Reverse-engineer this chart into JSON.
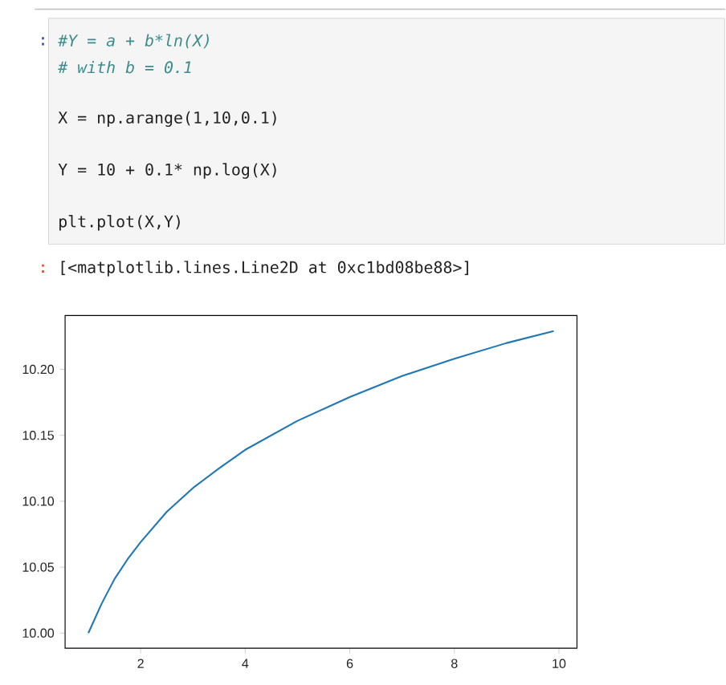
{
  "chart_data": {
    "type": "line",
    "annotations": [
      ":",
      "#Y = a + b*ln(X)",
      "# with b = 0.1",
      "X = np.arange(1,10,0.1)",
      "Y = 10 + 0.1* np.log(X)",
      "plt.plot(X,Y)",
      ":",
      "[<matplotlib.lines.Line2D at 0xc1bd08be88>]"
    ],
    "x": [
      1,
      1.25,
      1.5,
      1.75,
      2,
      2.5,
      3,
      3.5,
      4,
      5,
      6,
      7,
      8,
      9,
      9.9
    ],
    "series": [
      {
        "color": "#1f77b4",
        "values": [
          10.0,
          10.022,
          10.041,
          10.056,
          10.069,
          10.092,
          10.11,
          10.125,
          10.139,
          10.161,
          10.179,
          10.195,
          10.208,
          10.22,
          10.229
        ]
      }
    ],
    "xlim": [
      0.555,
      10.345
    ],
    "ylim": [
      9.9885,
      10.2408
    ],
    "xticks": [
      2,
      4,
      6,
      8,
      10
    ],
    "yticks": [
      {
        "value": 10.0,
        "label": "10.00"
      },
      {
        "value": 10.05,
        "label": "10.05"
      },
      {
        "value": 10.1,
        "label": "10.10"
      },
      {
        "value": 10.15,
        "label": "10.15"
      },
      {
        "value": 10.2,
        "label": "10.20"
      }
    ],
    "grid": false,
    "marker": "none",
    "line_style": "solid"
  }
}
